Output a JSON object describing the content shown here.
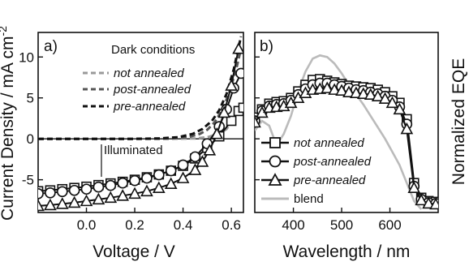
{
  "chart_data": [
    {
      "panel": "a)",
      "type": "line",
      "xlabel": "Voltage / V",
      "ylabel": "Current Density / mA cm",
      "ylabel_sup": "-2",
      "xlim": [
        -0.2,
        0.65
      ],
      "ylim": [
        -9,
        13
      ],
      "xticks": [
        0.0,
        0.2,
        0.4,
        0.6
      ],
      "xtick_labels": [
        "0.0",
        "0.2",
        "0.4",
        "0.6"
      ],
      "yticks": [
        -5,
        0,
        5,
        10
      ],
      "ytick_labels": [
        "-5",
        "0",
        "5",
        "10"
      ],
      "dark_title": "Dark conditions",
      "illuminated_label": "Illuminated",
      "series": [
        {
          "name": "not annealed",
          "condition": "dark",
          "style": "dashed",
          "color": "#9a9a9a",
          "x": [
            -0.2,
            0.0,
            0.2,
            0.35,
            0.45,
            0.5,
            0.55,
            0.58,
            0.6,
            0.62,
            0.64
          ],
          "y": [
            0,
            0,
            0,
            0,
            0.05,
            0.2,
            0.6,
            1.2,
            2.0,
            3.0,
            3.8
          ]
        },
        {
          "name": "post-annealed",
          "condition": "dark",
          "style": "dashed",
          "color": "#555555",
          "x": [
            -0.2,
            0.0,
            0.2,
            0.35,
            0.42,
            0.47,
            0.5,
            0.53,
            0.56,
            0.59,
            0.62,
            0.64
          ],
          "y": [
            0,
            0,
            0,
            0.05,
            0.2,
            0.6,
            1.1,
            2.0,
            3.4,
            5.5,
            8.5,
            11.0
          ]
        },
        {
          "name": "pre-annealed",
          "condition": "dark",
          "style": "dashed",
          "color": "#111111",
          "x": [
            -0.2,
            0.0,
            0.2,
            0.3,
            0.38,
            0.44,
            0.48,
            0.52,
            0.55,
            0.58,
            0.61,
            0.64
          ],
          "y": [
            0,
            0,
            0,
            0.05,
            0.2,
            0.6,
            1.2,
            2.2,
            3.5,
            5.5,
            8.5,
            12.5
          ]
        },
        {
          "name": "not annealed",
          "condition": "illuminated",
          "marker": "square",
          "x": [
            -0.2,
            -0.15,
            -0.1,
            -0.05,
            0.0,
            0.05,
            0.1,
            0.15,
            0.2,
            0.25,
            0.3,
            0.35,
            0.4,
            0.45,
            0.5,
            0.55,
            0.6,
            0.63,
            0.65
          ],
          "y": [
            -6.4,
            -6.3,
            -6.15,
            -6.0,
            -5.85,
            -5.65,
            -5.45,
            -5.25,
            -5.0,
            -4.7,
            -4.35,
            -3.9,
            -3.3,
            -2.4,
            -1.1,
            0.3,
            2.2,
            3.4,
            3.8
          ]
        },
        {
          "name": "post-annealed",
          "condition": "illuminated",
          "marker": "circle",
          "x": [
            -0.2,
            -0.15,
            -0.1,
            -0.05,
            0.0,
            0.05,
            0.1,
            0.15,
            0.2,
            0.25,
            0.3,
            0.35,
            0.4,
            0.45,
            0.5,
            0.55,
            0.58,
            0.61,
            0.64
          ],
          "y": [
            -6.7,
            -6.6,
            -6.45,
            -6.3,
            -6.15,
            -5.9,
            -5.7,
            -5.4,
            -5.1,
            -4.8,
            -4.4,
            -3.9,
            -3.2,
            -2.2,
            -0.6,
            1.5,
            3.6,
            6.2,
            8.0
          ]
        },
        {
          "name": "pre-annealed",
          "condition": "illuminated",
          "marker": "triangle",
          "x": [
            -0.2,
            -0.15,
            -0.1,
            -0.05,
            0.0,
            0.05,
            0.1,
            0.15,
            0.2,
            0.25,
            0.3,
            0.35,
            0.4,
            0.45,
            0.48,
            0.51,
            0.54,
            0.57,
            0.6,
            0.63
          ],
          "y": [
            -8.2,
            -8.1,
            -7.95,
            -7.8,
            -7.6,
            -7.4,
            -7.2,
            -6.95,
            -6.7,
            -6.4,
            -6.0,
            -5.5,
            -4.8,
            -3.8,
            -2.8,
            -1.4,
            0.6,
            3.2,
            6.5,
            11.0
          ]
        }
      ]
    },
    {
      "panel": "b)",
      "type": "line",
      "xlabel": "Wavelength / nm",
      "ylabel": "Normalized EQE",
      "xlim": [
        320,
        700
      ],
      "ylim": [
        -9,
        13
      ],
      "xticks": [
        400,
        500,
        600
      ],
      "xtick_labels": [
        "400",
        "500",
        "600"
      ],
      "series": [
        {
          "name": "not annealed",
          "marker": "square",
          "x": [
            320,
            335,
            350,
            365,
            380,
            395,
            410,
            425,
            440,
            455,
            470,
            485,
            500,
            515,
            530,
            545,
            560,
            575,
            590,
            605,
            620,
            635,
            650,
            665,
            680,
            695
          ],
          "y": [
            2.6,
            3.6,
            4.3,
            4.5,
            4.6,
            5.0,
            5.8,
            6.6,
            7.2,
            7.3,
            7.1,
            6.9,
            6.7,
            6.5,
            6.4,
            6.3,
            6.2,
            6.0,
            5.7,
            5.2,
            4.4,
            2.4,
            -5.4,
            -7.2,
            -7.6,
            -7.7
          ]
        },
        {
          "name": "post-annealed",
          "marker": "circle",
          "x": [
            320,
            335,
            350,
            365,
            380,
            395,
            410,
            425,
            440,
            455,
            470,
            485,
            500,
            515,
            530,
            545,
            560,
            575,
            590,
            605,
            620,
            635,
            650,
            665,
            680,
            695
          ],
          "y": [
            2.2,
            3.4,
            4.0,
            4.2,
            4.3,
            4.7,
            5.4,
            6.1,
            6.6,
            6.8,
            6.8,
            6.6,
            6.4,
            6.2,
            6.0,
            5.9,
            5.7,
            5.5,
            5.2,
            4.7,
            3.9,
            1.8,
            -5.8,
            -7.4,
            -7.8,
            -7.9
          ]
        },
        {
          "name": "pre-annealed",
          "marker": "triangle",
          "x": [
            320,
            335,
            350,
            365,
            380,
            395,
            410,
            425,
            440,
            455,
            470,
            485,
            500,
            515,
            530,
            545,
            560,
            575,
            590,
            605,
            620,
            635,
            650,
            665,
            680,
            695
          ],
          "y": [
            2.0,
            3.2,
            3.8,
            3.9,
            4.0,
            4.4,
            5.0,
            5.6,
            6.0,
            6.1,
            6.2,
            6.0,
            5.9,
            5.7,
            5.6,
            5.5,
            5.4,
            5.2,
            4.9,
            4.4,
            3.6,
            1.2,
            -6.0,
            -7.5,
            -7.9,
            -8.0
          ]
        },
        {
          "name": "blend",
          "color": "#bbbbbb",
          "x": [
            320,
            335,
            350,
            365,
            380,
            395,
            410,
            425,
            440,
            455,
            470,
            485,
            500,
            515,
            530,
            545,
            560,
            575,
            590,
            605,
            620,
            635,
            650,
            665
          ],
          "y": [
            1.0,
            2.2,
            1.6,
            -0.8,
            0.6,
            2.8,
            5.8,
            8.2,
            9.8,
            10.2,
            10.0,
            9.2,
            8.0,
            6.6,
            5.4,
            4.2,
            2.8,
            1.4,
            0.0,
            -1.6,
            -3.2,
            -5.4,
            -7.6,
            -8.6
          ]
        }
      ]
    }
  ]
}
